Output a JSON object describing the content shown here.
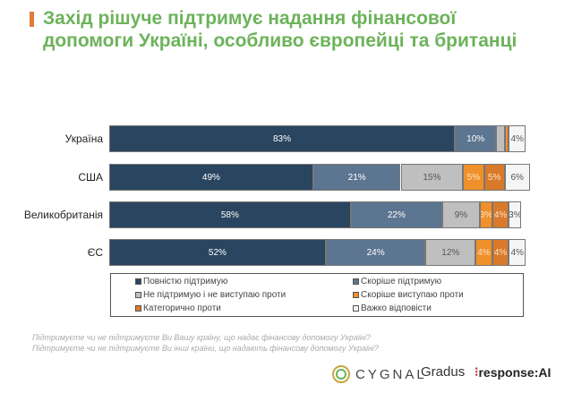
{
  "title_line1": "Захід рішуче підтримує надання фінансової",
  "title_line2": "допомоги Україні, особливо європейці та британці",
  "chart_data": {
    "type": "bar",
    "orientation": "horizontal-stacked-100",
    "categories": [
      "Україна",
      "США",
      "Великобританія",
      "ЄС"
    ],
    "series": [
      {
        "name": "Повністю підтримую",
        "color": "#2a4560",
        "text": "#ffffff",
        "values": [
          83,
          49,
          58,
          52
        ]
      },
      {
        "name": "Скоріше підтримую",
        "color": "#5c7590",
        "text": "#ffffff",
        "values": [
          10,
          21,
          22,
          24
        ]
      },
      {
        "name": "Не підтримую і не виступаю проти",
        "color": "#bfbfbf",
        "text": "#555555",
        "values": [
          2,
          15,
          9,
          12
        ]
      },
      {
        "name": "Скоріше виступаю проти",
        "color": "#f0902a",
        "text": "#fde3c4",
        "values": [
          1,
          5,
          3,
          4
        ]
      },
      {
        "name": "Категорично проти",
        "color": "#d97a2a",
        "text": "#fde3c4",
        "values": [
          0,
          5,
          4,
          4
        ]
      },
      {
        "name": "Важко відповісти",
        "color": "#f5f5f5",
        "text": "#555555",
        "values": [
          4,
          6,
          3,
          4
        ]
      }
    ],
    "legend_placement": "bottom"
  },
  "notes": [
    "Підтримуєте чи не підтримуєте Ви Вашу країну, що надає фінансову допомогу Україні?",
    "Підтримуєте чи не підтримуєте Ви інші країни, що надають фінансову допомогу Україні?"
  ],
  "logos": {
    "cygnal": "CYGNAL",
    "gradus": "Gradus",
    "response": "response:AI"
  }
}
